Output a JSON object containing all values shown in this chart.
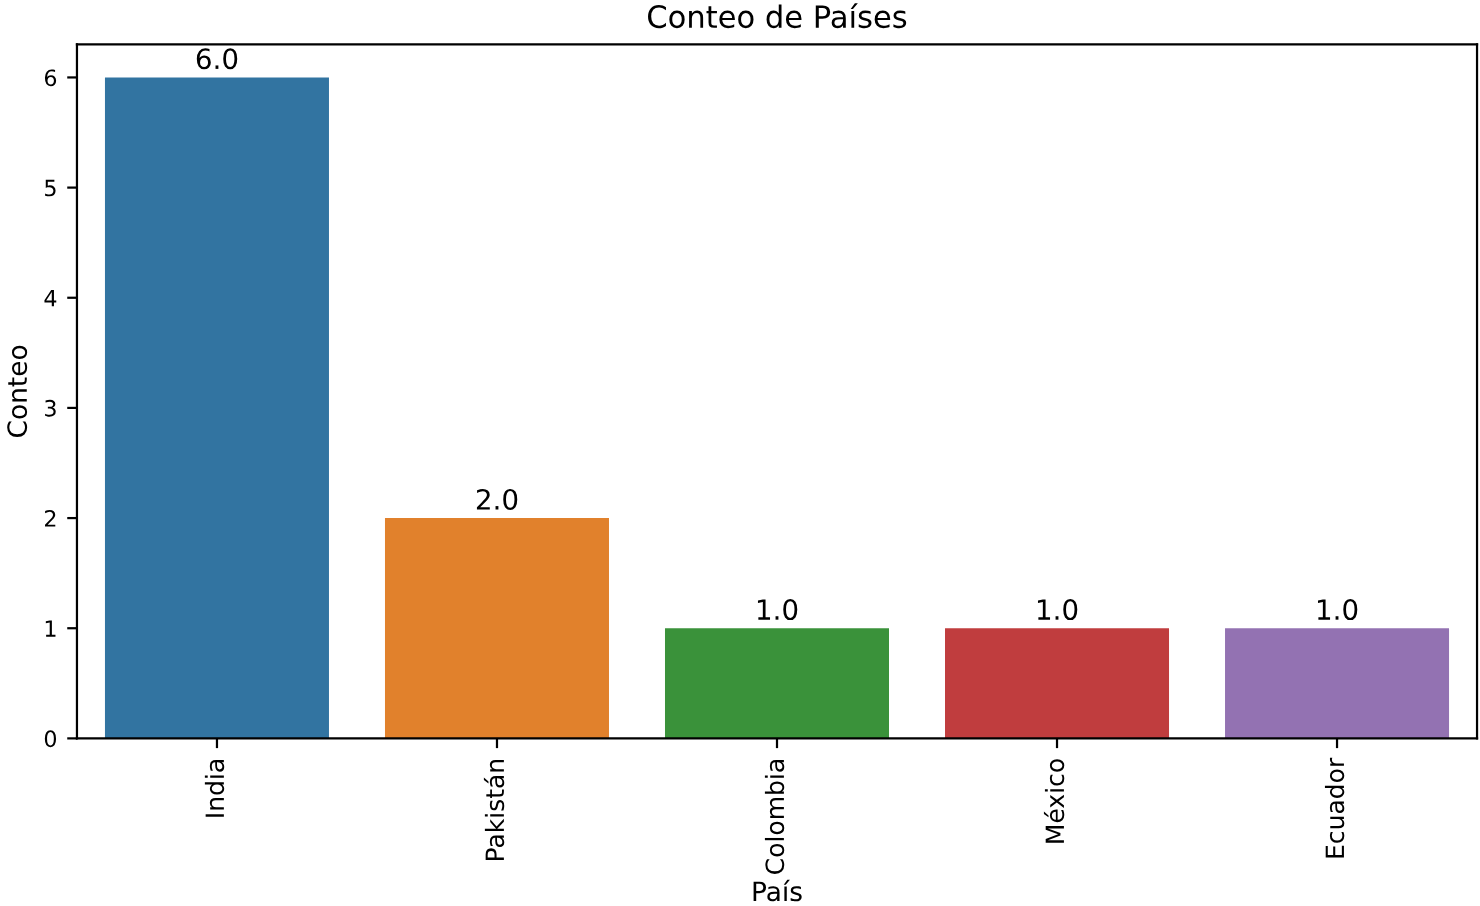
{
  "chart_data": {
    "type": "bar",
    "title": "Conteo de Países",
    "xlabel": "País",
    "ylabel": "Conteo",
    "categories": [
      "India",
      "Pakistán",
      "Colombia",
      "México",
      "Ecuador"
    ],
    "values": [
      6,
      2,
      1,
      1,
      1
    ],
    "colors": [
      "#3274a1",
      "#e1812c",
      "#3a923a",
      "#c03d3e",
      "#9372b2"
    ],
    "value_labels": [
      "6.0",
      "2.0",
      "1.0",
      "1.0",
      "1.0"
    ],
    "ylim": [
      0,
      6.3
    ],
    "yticks": [
      0,
      1,
      2,
      3,
      4,
      5,
      6
    ],
    "grid": false,
    "legend": false
  }
}
